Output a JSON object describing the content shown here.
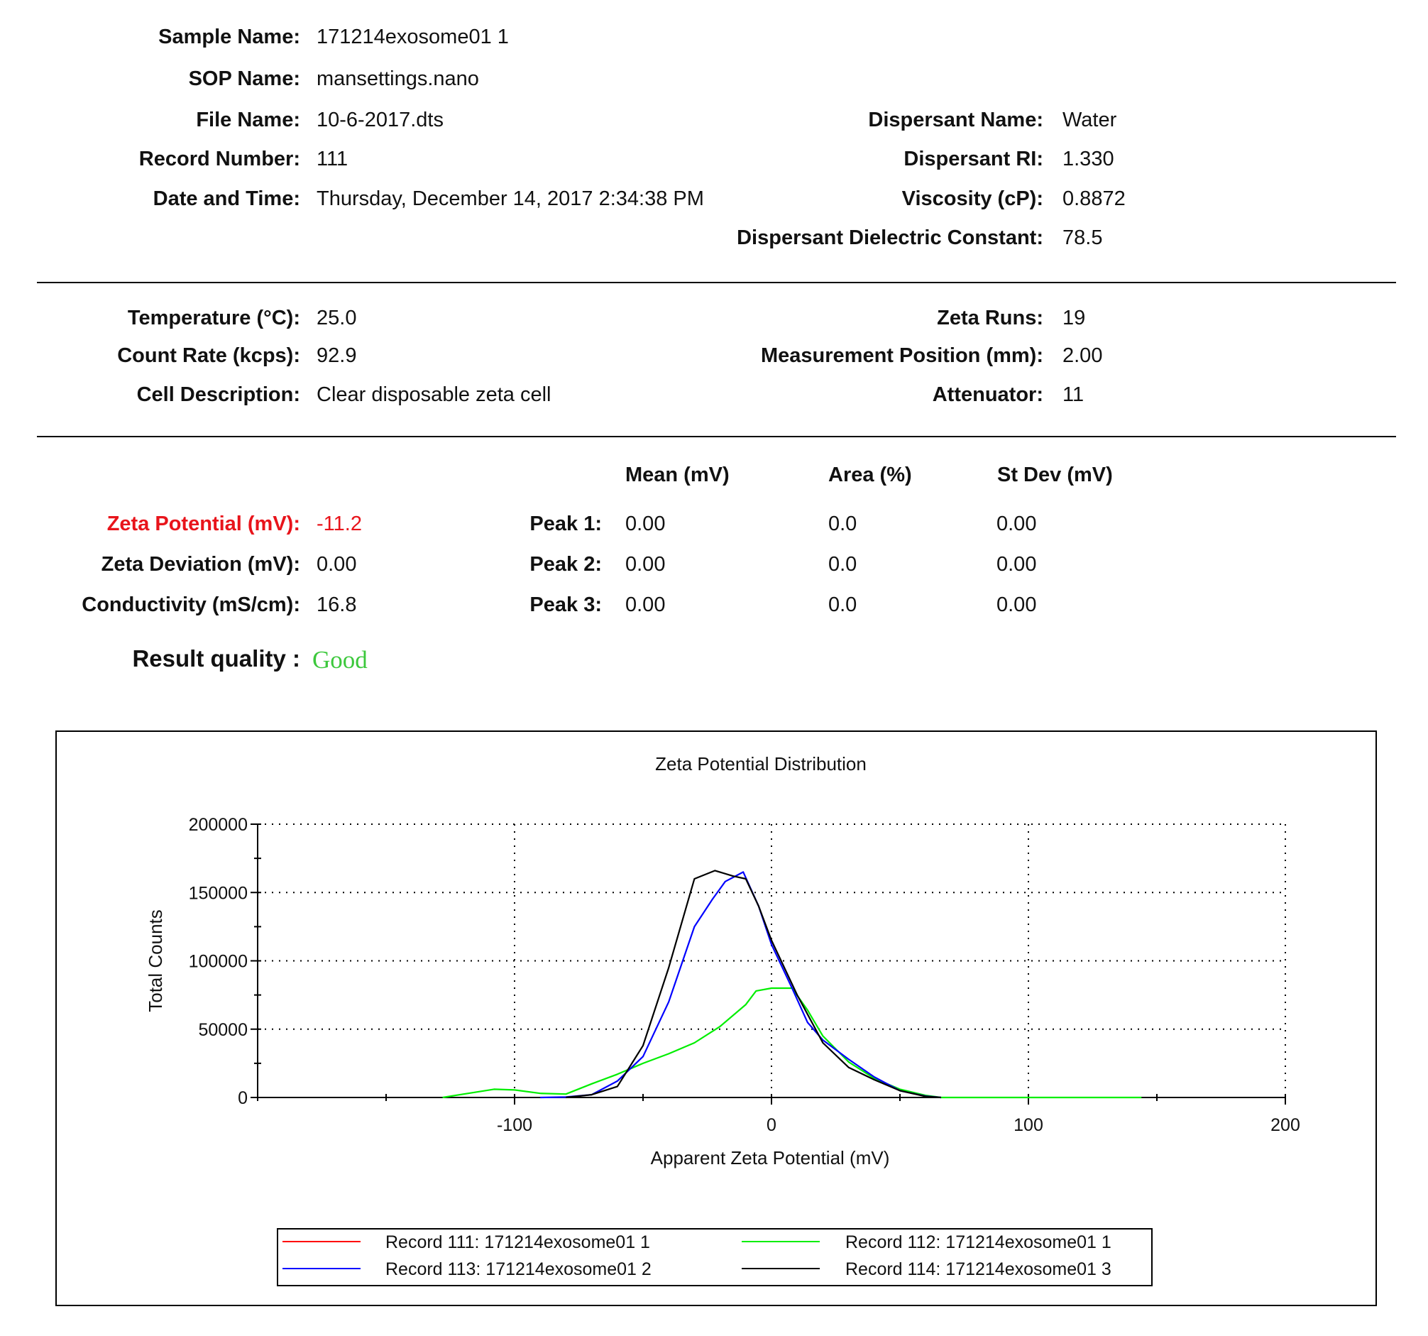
{
  "info": {
    "sample_name": {
      "label": "Sample Name:",
      "value": "171214exosome01 1"
    },
    "sop_name": {
      "label": "SOP Name:",
      "value": "mansettings.nano"
    },
    "file_name": {
      "label": "File Name:",
      "value": "10-6-2017.dts"
    },
    "record_number": {
      "label": "Record Number:",
      "value": "111"
    },
    "date_time": {
      "label": "Date and Time:",
      "value": "Thursday, December 14, 2017 2:34:38 PM"
    },
    "dispersant_name": {
      "label": "Dispersant Name:",
      "value": "Water"
    },
    "dispersant_ri": {
      "label": "Dispersant RI:",
      "value": "1.330"
    },
    "viscosity": {
      "label": "Viscosity (cP):",
      "value": "0.8872"
    },
    "dielectric": {
      "label": "Dispersant Dielectric Constant:",
      "value": "78.5"
    }
  },
  "conditions": {
    "temperature": {
      "label": "Temperature (°C):",
      "value": "25.0"
    },
    "count_rate": {
      "label": "Count Rate (kcps):",
      "value": "92.9"
    },
    "cell_description": {
      "label": "Cell Description:",
      "value": "Clear disposable zeta cell"
    },
    "zeta_runs": {
      "label": "Zeta Runs:",
      "value": "19"
    },
    "measurement_position": {
      "label": "Measurement Position (mm):",
      "value": "2.00"
    },
    "attenuator": {
      "label": "Attenuator:",
      "value": "11"
    }
  },
  "results": {
    "zeta_potential": {
      "label": "Zeta Potential (mV):",
      "value": "-11.2"
    },
    "zeta_deviation": {
      "label": "Zeta Deviation (mV):",
      "value": "0.00"
    },
    "conductivity": {
      "label": "Conductivity (mS/cm):",
      "value": "16.8"
    },
    "result_quality": {
      "label": "Result quality :",
      "value": "Good"
    },
    "peak_headers": {
      "mean": "Mean (mV)",
      "area": "Area (%)",
      "stdev": "St Dev (mV)"
    },
    "peaks": [
      {
        "label": "Peak 1:",
        "mean": "0.00",
        "area": "0.0",
        "stdev": "0.00"
      },
      {
        "label": "Peak 2:",
        "mean": "0.00",
        "area": "0.0",
        "stdev": "0.00"
      },
      {
        "label": "Peak 3:",
        "mean": "0.00",
        "area": "0.0",
        "stdev": "0.00"
      }
    ]
  },
  "colors": {
    "zeta_potential": "#e8141b",
    "good": "#3cc83c"
  },
  "chart_data": {
    "type": "line",
    "title": "Zeta Potential Distribution",
    "xlabel": "Apparent Zeta Potential (mV)",
    "ylabel": "Total Counts",
    "xlim": [
      -200,
      200
    ],
    "ylim": [
      0,
      200000
    ],
    "xticks": [
      -100,
      0,
      100,
      200
    ],
    "xtick_labels": [
      "-100",
      "0",
      "100",
      "200"
    ],
    "yticks": [
      0,
      50000,
      100000,
      150000,
      200000
    ],
    "ytick_labels": [
      "0",
      "50000",
      "100000",
      "150000",
      "200000"
    ],
    "grid": true,
    "legend_position": "bottom",
    "series": [
      {
        "name": "Record 111: 171214exosome01 1",
        "color": "#ff0000",
        "x": [],
        "y": []
      },
      {
        "name": "Record 112: 171214exosome01 1",
        "color": "#00ee00",
        "x": [
          -128,
          -118,
          -108,
          -100,
          -90,
          -80,
          -70,
          -60,
          -50,
          -40,
          -30,
          -20,
          -10,
          -6,
          0,
          8,
          14,
          20,
          30,
          40,
          50,
          60,
          66,
          140,
          144
        ],
        "y": [
          0,
          3000,
          6000,
          5500,
          3000,
          2500,
          10000,
          17000,
          25000,
          32000,
          40000,
          52000,
          68000,
          78000,
          80000,
          80000,
          64000,
          45000,
          26000,
          14000,
          6000,
          1500,
          0,
          0,
          0
        ]
      },
      {
        "name": "Record 113: 171214exosome01 2",
        "color": "#0000ff",
        "x": [
          -90,
          -80,
          -70,
          -60,
          -50,
          -40,
          -30,
          -23,
          -18,
          -11,
          -5,
          0,
          8,
          14,
          20,
          30,
          40,
          50,
          60,
          66
        ],
        "y": [
          0,
          300,
          2000,
          12000,
          30000,
          70000,
          125000,
          145000,
          158000,
          165000,
          140000,
          112000,
          80000,
          55000,
          42000,
          28000,
          15000,
          5000,
          1000,
          0
        ]
      },
      {
        "name": "Record 114: 171214exosome01 3",
        "color": "#000000",
        "x": [
          -80,
          -70,
          -60,
          -50,
          -40,
          -30,
          -22,
          -15,
          -10,
          -5,
          0,
          10,
          20,
          30,
          40,
          50,
          60,
          66
        ],
        "y": [
          0,
          2000,
          8000,
          38000,
          95000,
          160000,
          166000,
          162000,
          160000,
          140000,
          115000,
          75000,
          40000,
          22000,
          13000,
          5000,
          800,
          0
        ]
      }
    ]
  }
}
